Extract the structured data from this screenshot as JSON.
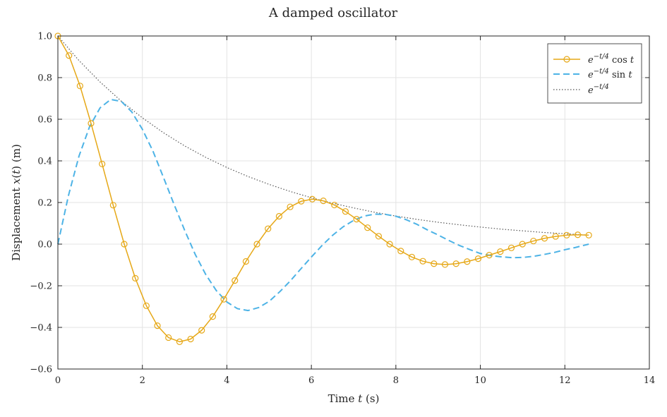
{
  "chart_data": {
    "type": "line",
    "title": "A damped oscillator",
    "xlabel": {
      "prefix": "Time ",
      "var": "t",
      "suffix": " (s)"
    },
    "ylabel": {
      "prefix": "Displacement ",
      "var": "x",
      "open": "(",
      "var2": "t",
      "close": ")",
      "suffix": " (m)"
    },
    "xlim": [
      0,
      14
    ],
    "ylim": [
      -0.6,
      1.0
    ],
    "xticks": [
      0,
      2,
      4,
      6,
      8,
      10,
      12,
      14
    ],
    "yticks": [
      -0.6,
      -0.4,
      -0.2,
      0.0,
      0.2,
      0.4,
      0.6,
      0.8,
      1.0
    ],
    "xtick_labels": [
      "0",
      "2",
      "4",
      "6",
      "8",
      "10",
      "12",
      "14"
    ],
    "ytick_labels": [
      "−0.6",
      "−0.4",
      "−0.2",
      "0.0",
      "0.2",
      "0.4",
      "0.6",
      "0.8",
      "1.0"
    ],
    "grid": true,
    "legend_position": "top-right",
    "x_max_data": 12.566,
    "series": [
      {
        "name": "e^{-t/4} cos t",
        "legend": {
          "base": "e",
          "sup": "−t/4",
          "func": " cos ",
          "var": "t"
        },
        "color": "#e6a817",
        "style": "solid",
        "marker": "circle",
        "x": [
          0.0,
          0.262,
          0.524,
          0.785,
          1.047,
          1.309,
          1.571,
          1.833,
          2.094,
          2.356,
          2.618,
          2.88,
          3.142,
          3.403,
          3.665,
          3.927,
          4.189,
          4.451,
          4.712,
          4.974,
          5.236,
          5.498,
          5.76,
          6.021,
          6.283,
          6.545,
          6.807,
          7.069,
          7.33,
          7.592,
          7.854,
          8.116,
          8.378,
          8.639,
          8.901,
          9.163,
          9.425,
          9.687,
          9.948,
          10.21,
          10.472,
          10.734,
          10.996,
          11.257,
          11.519,
          11.781,
          12.043,
          12.305,
          12.566
        ],
        "y": [
          1.0,
          0.906,
          0.76,
          0.58,
          0.385,
          0.187,
          0.0,
          -0.164,
          -0.296,
          -0.392,
          -0.449,
          -0.469,
          -0.456,
          -0.414,
          -0.348,
          -0.265,
          -0.175,
          -0.083,
          0.0,
          0.074,
          0.134,
          0.179,
          0.206,
          0.216,
          0.208,
          0.188,
          0.157,
          0.12,
          0.079,
          0.038,
          0.0,
          -0.033,
          -0.062,
          -0.082,
          -0.094,
          -0.098,
          -0.094,
          -0.084,
          -0.07,
          -0.053,
          -0.036,
          -0.018,
          0.0,
          0.015,
          0.028,
          0.037,
          0.043,
          0.045,
          0.043
        ]
      },
      {
        "name": "e^{-t/4} sin t",
        "legend": {
          "base": "e",
          "sup": "−t/4",
          "func": " sin ",
          "var": "t"
        },
        "color": "#4db3e6",
        "style": "dashed",
        "marker": "none",
        "x": [
          0.0,
          0.25,
          0.5,
          0.75,
          1.0,
          1.25,
          1.5,
          1.75,
          2.0,
          2.25,
          2.5,
          2.75,
          3.0,
          3.25,
          3.5,
          3.75,
          4.0,
          4.25,
          4.5,
          4.75,
          5.0,
          5.25,
          5.5,
          5.75,
          6.0,
          6.25,
          6.5,
          6.75,
          7.0,
          7.25,
          7.5,
          7.75,
          8.0,
          8.25,
          8.5,
          8.75,
          9.0,
          9.25,
          9.5,
          9.75,
          10.0,
          10.25,
          10.5,
          10.75,
          11.0,
          11.25,
          11.5,
          11.75,
          12.0,
          12.25,
          12.566
        ],
        "y": [
          0.0,
          0.233,
          0.423,
          0.564,
          0.655,
          0.695,
          0.686,
          0.635,
          0.552,
          0.447,
          0.32,
          0.191,
          0.067,
          -0.049,
          -0.146,
          -0.223,
          -0.278,
          -0.31,
          -0.319,
          -0.305,
          -0.275,
          -0.229,
          -0.177,
          -0.119,
          -0.062,
          -0.007,
          0.042,
          0.083,
          0.114,
          0.135,
          0.144,
          0.143,
          0.134,
          0.117,
          0.095,
          0.068,
          0.044,
          0.018,
          -0.006,
          -0.026,
          -0.045,
          -0.055,
          -0.061,
          -0.065,
          -0.064,
          -0.059,
          -0.05,
          -0.04,
          -0.027,
          -0.016,
          0.0
        ]
      },
      {
        "name": "e^{-t/4}",
        "legend": {
          "base": "e",
          "sup": "−t/4",
          "func": "",
          "var": ""
        },
        "color": "#555555",
        "style": "dotted",
        "marker": "none",
        "x": [
          0.0,
          0.5,
          1.0,
          1.5,
          2.0,
          2.5,
          3.0,
          3.5,
          4.0,
          4.5,
          5.0,
          5.5,
          6.0,
          6.5,
          7.0,
          7.5,
          8.0,
          8.5,
          9.0,
          9.5,
          10.0,
          10.5,
          11.0,
          11.5,
          12.0,
          12.566
        ],
        "y": [
          1.0,
          0.882,
          0.779,
          0.687,
          0.607,
          0.535,
          0.472,
          0.417,
          0.368,
          0.325,
          0.287,
          0.253,
          0.223,
          0.197,
          0.174,
          0.153,
          0.135,
          0.119,
          0.105,
          0.093,
          0.082,
          0.072,
          0.064,
          0.056,
          0.05,
          0.043
        ]
      }
    ]
  }
}
